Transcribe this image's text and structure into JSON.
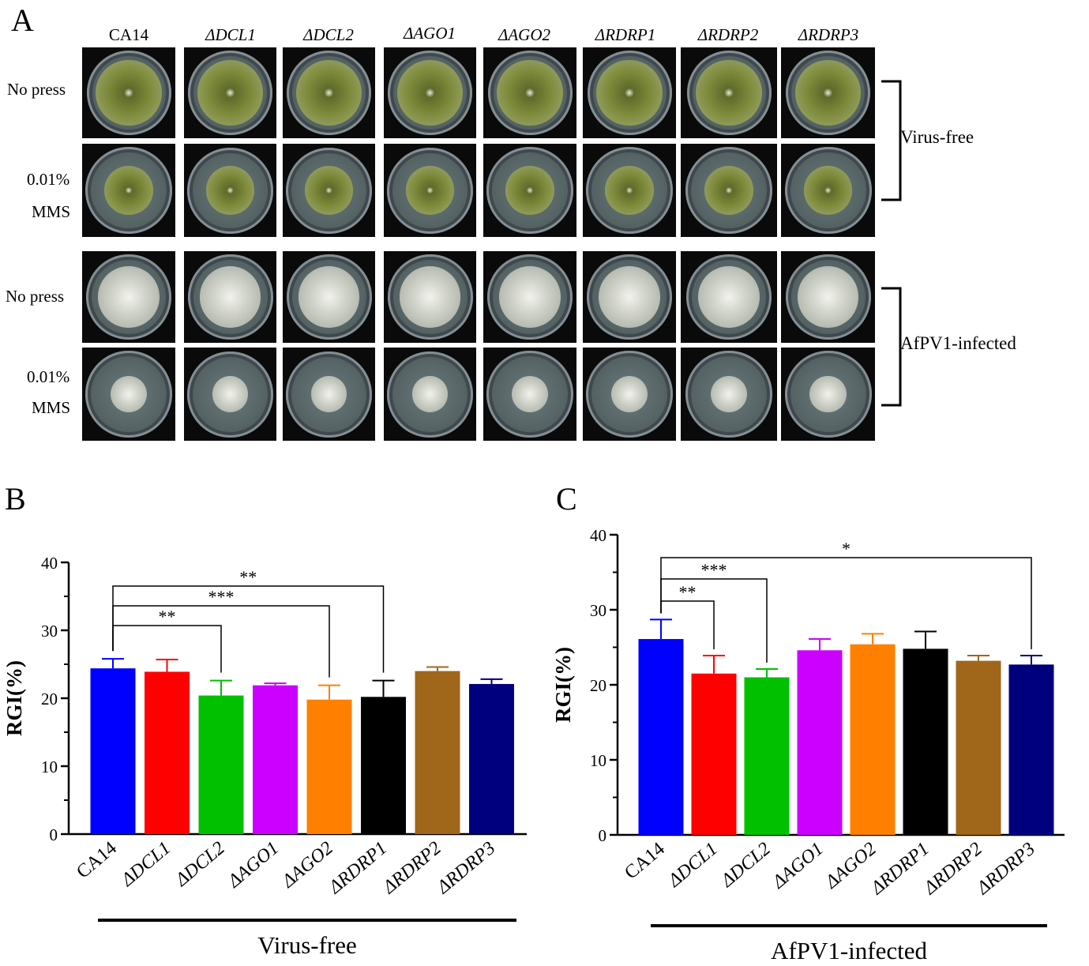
{
  "panel_letters": {
    "a": "A",
    "b": "B",
    "c": "C"
  },
  "panel_a": {
    "columns": [
      "CA14",
      "ΔDCL1",
      "ΔDCL2",
      "ΔAGO1",
      "ΔAGO2",
      "ΔRDRP1",
      "ΔRDRP2",
      "ΔRDRP3"
    ],
    "virus_free": {
      "group_label": "Virus-free",
      "row1_label": "No press",
      "row2_label_line1": "0.01%",
      "row2_label_line2": "MMS"
    },
    "infected": {
      "group_label": "AfPV1-infected",
      "row1_label": "No press",
      "row2_label_line1": "0.01%",
      "row2_label_line2": "MMS"
    },
    "colors": {
      "virus_free_colony": "#7d8a3a",
      "virus_free_edge": "#b9bfa3",
      "infected_colony": "#cfd2c8",
      "plate_bg": "#0a0a0a",
      "agar": "#6a7a7c"
    }
  },
  "chart_data": [
    {
      "type": "bar",
      "panel": "B",
      "categories": [
        "CA14",
        "ΔDCL1",
        "ΔDCL2",
        "ΔAGO1",
        "ΔAGO2",
        "ΔRDRP1",
        "ΔRDRP2",
        "ΔRDRP3"
      ],
      "values": [
        24.4,
        23.9,
        20.4,
        21.9,
        19.8,
        20.2,
        24.0,
        22.1
      ],
      "errors": [
        1.4,
        1.8,
        2.2,
        0.3,
        2.1,
        2.4,
        0.6,
        0.7
      ],
      "colors": [
        "#0000ff",
        "#ff0000",
        "#00c000",
        "#cc00ff",
        "#ff8000",
        "#000000",
        "#a0661a",
        "#00007f"
      ],
      "ylabel": "RGI(%)",
      "ylim": [
        0,
        40
      ],
      "yticks": [
        0,
        10,
        20,
        30,
        40
      ],
      "group_label": "Virus-free",
      "significance": [
        {
          "from": "CA14",
          "to": "ΔDCL2",
          "label": "**"
        },
        {
          "from": "CA14",
          "to": "ΔAGO2",
          "label": "***"
        },
        {
          "from": "CA14",
          "to": "ΔRDRP1",
          "label": "**"
        }
      ]
    },
    {
      "type": "bar",
      "panel": "C",
      "categories": [
        "CA14",
        "ΔDCL1",
        "ΔDCL2",
        "ΔAGO1",
        "ΔAGO2",
        "ΔRDRP1",
        "ΔRDRP2",
        "ΔRDRP3"
      ],
      "values": [
        26.1,
        21.5,
        21.0,
        24.6,
        25.4,
        24.8,
        23.2,
        22.7
      ],
      "errors": [
        2.6,
        2.4,
        1.1,
        1.5,
        1.4,
        2.3,
        0.7,
        1.2
      ],
      "colors": [
        "#0000ff",
        "#ff0000",
        "#00c000",
        "#cc00ff",
        "#ff8000",
        "#000000",
        "#a0661a",
        "#00007f"
      ],
      "ylabel": "RGI(%)",
      "ylim": [
        0,
        40
      ],
      "yticks": [
        0,
        10,
        20,
        30,
        40
      ],
      "group_label": "AfPV1-infected",
      "significance": [
        {
          "from": "CA14",
          "to": "ΔDCL1",
          "label": "**"
        },
        {
          "from": "CA14",
          "to": "ΔDCL2",
          "label": "***"
        },
        {
          "from": "CA14",
          "to": "ΔRDRP3",
          "label": "*"
        }
      ]
    }
  ]
}
